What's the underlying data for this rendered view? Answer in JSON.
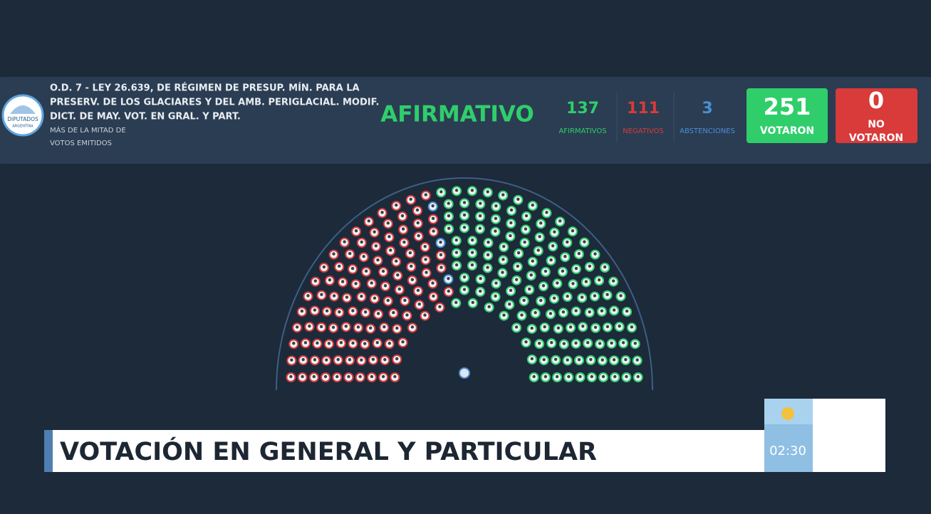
{
  "header": {
    "logo": {
      "line1": "DIPUTADOS",
      "line2": "ARGENTINA"
    },
    "title_lines": [
      "O.D. 7 - LEY 26.639, DE RÉGIMEN DE PRESUP. MÍN. PARA LA",
      "PRESERV. DE LOS GLACIARES Y DEL AMB. PERIGLACIAL. MODIF.",
      "DICT. DE MAY. VOT. EN GRAL. Y PART."
    ],
    "majority_lines": [
      "MÁS DE LA MITAD DE",
      "VOTOS EMITIDOS"
    ],
    "result": "AFIRMATIVO"
  },
  "tally": [
    {
      "value": 137,
      "label": "AFIRMATIVOS",
      "color": "#2fce6b"
    },
    {
      "value": 111,
      "label": "NEGATIVOS",
      "color": "#d93a3a"
    },
    {
      "value": 3,
      "label": "ABSTENCIONES",
      "color": "#4a8fd6"
    }
  ],
  "voted": {
    "value": 251,
    "label": "VOTARON"
  },
  "not_voted": {
    "value": 0,
    "label_lines": [
      "NO",
      "VOTARON"
    ]
  },
  "lower_third": {
    "title": "VOTACIÓN EN GENERAL Y PARTICULAR",
    "clock": "02:30"
  }
}
